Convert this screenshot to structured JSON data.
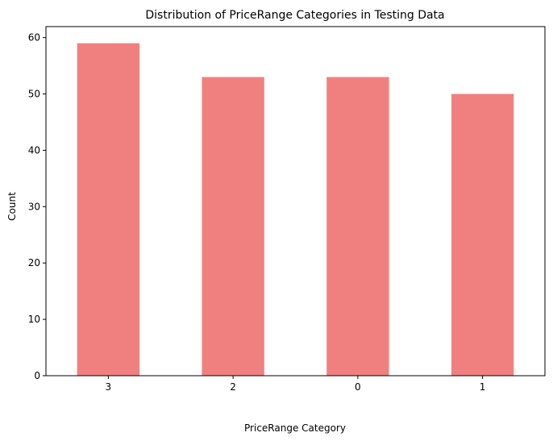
{
  "chart_data": {
    "type": "bar",
    "title": "Distribution of PriceRange Categories in Testing Data",
    "xlabel": "PriceRange Category",
    "ylabel": "Count",
    "categories": [
      "3",
      "2",
      "0",
      "1"
    ],
    "values": [
      59,
      53,
      53,
      50
    ],
    "ylim": [
      0,
      61.95
    ],
    "yticks": [
      0,
      10,
      20,
      30,
      40,
      50,
      60
    ],
    "bar_color": "#f08080",
    "grid": false,
    "legend": "none"
  }
}
